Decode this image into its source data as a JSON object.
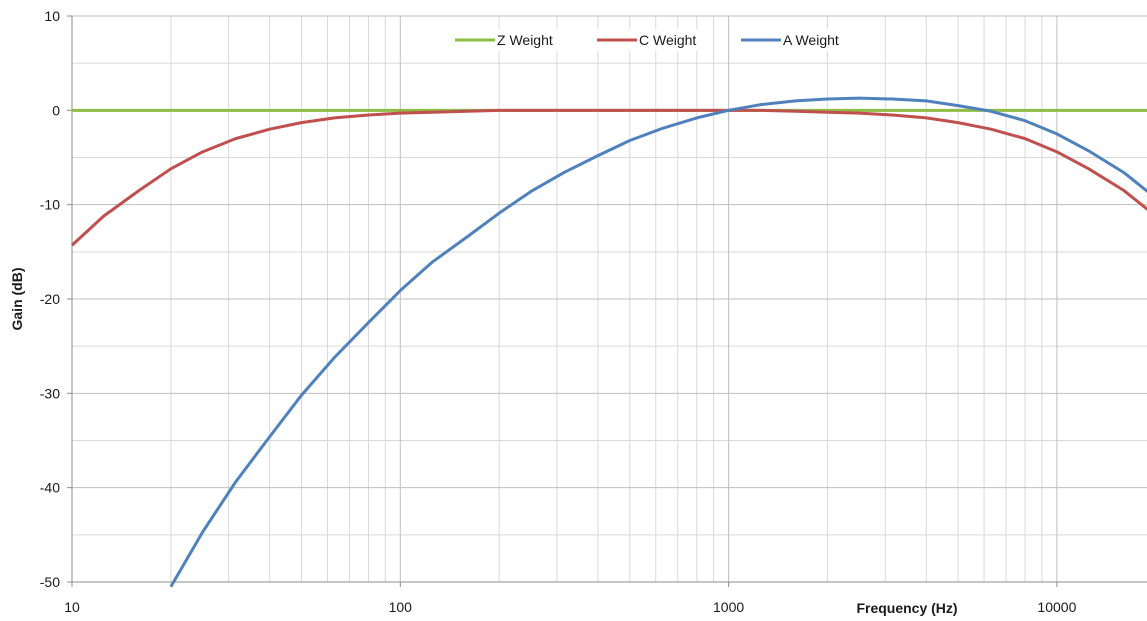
{
  "chart_data": {
    "type": "line",
    "xlabel": "Frequency (Hz)",
    "ylabel": "Gain (dB)",
    "xscale": "log",
    "xlim": [
      10,
      20000
    ],
    "ylim": [
      -50,
      10
    ],
    "x_ticks": [
      10,
      100,
      1000,
      10000
    ],
    "y_ticks": [
      10,
      0,
      -10,
      -20,
      -30,
      -40,
      -50
    ],
    "grid": true,
    "legend_placement": "top-center",
    "series": [
      {
        "name": "Z Weight",
        "color": "#8fbc45",
        "x": [
          10,
          20000
        ],
        "y": [
          0,
          0
        ]
      },
      {
        "name": "C Weight",
        "color": "#c0504d",
        "x": [
          10,
          12.5,
          16,
          20,
          25,
          31.5,
          40,
          50,
          63,
          80,
          100,
          125,
          160,
          200,
          250,
          315,
          400,
          500,
          630,
          800,
          1000,
          1250,
          1600,
          2000,
          2500,
          3150,
          4000,
          5000,
          6300,
          8000,
          10000,
          12500,
          16000,
          20000
        ],
        "y": [
          -14.3,
          -11.2,
          -8.5,
          -6.2,
          -4.4,
          -3.0,
          -2.0,
          -1.3,
          -0.8,
          -0.5,
          -0.3,
          -0.2,
          -0.1,
          0.0,
          0.0,
          0.0,
          0.0,
          0.0,
          0.0,
          0.0,
          0.0,
          0.0,
          -0.1,
          -0.2,
          -0.3,
          -0.5,
          -0.8,
          -1.3,
          -2.0,
          -3.0,
          -4.4,
          -6.2,
          -8.5,
          -11.2
        ]
      },
      {
        "name": "A Weight",
        "color": "#4f81bd",
        "x": [
          20,
          25,
          31.5,
          40,
          50,
          63,
          80,
          100,
          125,
          160,
          200,
          250,
          315,
          400,
          500,
          630,
          800,
          1000,
          1250,
          1600,
          2000,
          2500,
          3150,
          4000,
          5000,
          6300,
          8000,
          10000,
          12500,
          16000,
          20000
        ],
        "y": [
          -50.5,
          -44.7,
          -39.4,
          -34.6,
          -30.2,
          -26.2,
          -22.5,
          -19.1,
          -16.1,
          -13.4,
          -10.9,
          -8.6,
          -6.6,
          -4.8,
          -3.2,
          -1.9,
          -0.8,
          0.0,
          0.6,
          1.0,
          1.2,
          1.3,
          1.2,
          1.0,
          0.5,
          -0.1,
          -1.1,
          -2.5,
          -4.3,
          -6.6,
          -9.3
        ]
      }
    ]
  }
}
